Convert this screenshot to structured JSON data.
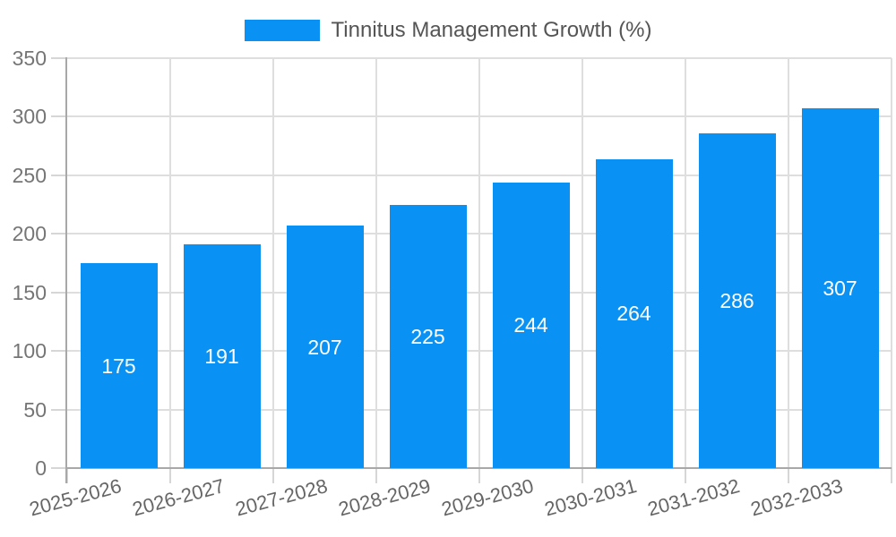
{
  "chart_data": {
    "type": "bar",
    "title": "Tinnitus Management Growth (%)",
    "categories": [
      "2025-2026",
      "2026-2027",
      "2027-2028",
      "2028-2029",
      "2029-2030",
      "2030-2031",
      "2031-2032",
      "2032-2033"
    ],
    "values": [
      175,
      191,
      207,
      225,
      244,
      264,
      286,
      307
    ],
    "xlabel": "",
    "ylabel": "",
    "ylim": [
      0,
      350
    ],
    "yticks": [
      0,
      50,
      100,
      150,
      200,
      250,
      300,
      350
    ],
    "grid": "on",
    "legend_position": "top-center",
    "bar_value_labels": "inside-center"
  },
  "colors": {
    "bar": "#0992f3",
    "bar_label": "#ffffff",
    "axis": "#a8a8a8",
    "gridline": "#dedede",
    "tick": "#d6d6d6",
    "ytick_label": "#757575",
    "xtick_label": "#666666",
    "legend_text": "#555555",
    "background": "#ffffff"
  }
}
